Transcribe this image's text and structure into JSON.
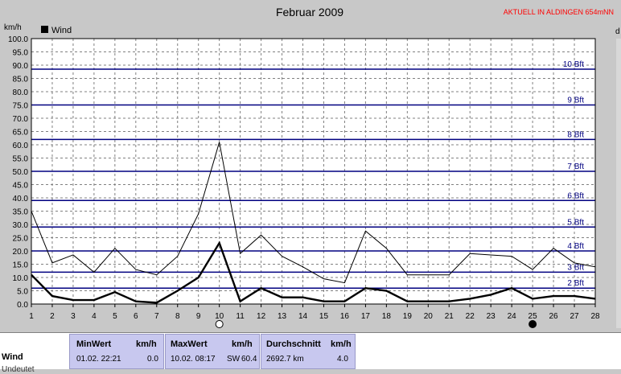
{
  "header": {
    "title": "Februar 2009",
    "station": "AKTUELL IN ALDINGEN 654mNN",
    "unit_left": "km/h",
    "unit_right": "d"
  },
  "legend": {
    "label": "Wind"
  },
  "colors": {
    "background": "#c8c8c8",
    "plot_background": "#ffffff",
    "beaufort_lines": "#000080",
    "grid": "#808080",
    "series": "#000000",
    "station_text": "#ff0000",
    "stats_panel": "#c8c8ef"
  },
  "chart_data": {
    "type": "line",
    "title": "Februar 2009",
    "ylabel": "km/h",
    "xlim": [
      1,
      28
    ],
    "ylim": [
      0,
      100
    ],
    "y_ticks": [
      "0.0",
      "5.0",
      "10.0",
      "15.0",
      "20.0",
      "25.0",
      "30.0",
      "35.0",
      "40.0",
      "45.0",
      "50.0",
      "55.0",
      "60.0",
      "65.0",
      "70.0",
      "75.0",
      "80.0",
      "85.0",
      "90.0",
      "95.0",
      "100.0"
    ],
    "x_ticks": [
      "1",
      "2",
      "3",
      "4",
      "5",
      "6",
      "7",
      "8",
      "9",
      "10",
      "11",
      "12",
      "13",
      "14",
      "15",
      "16",
      "17",
      "18",
      "19",
      "20",
      "21",
      "22",
      "23",
      "24",
      "25",
      "26",
      "27",
      "28"
    ],
    "grid": true,
    "legend_position": "top-left",
    "x": [
      1,
      2,
      3,
      4,
      5,
      6,
      7,
      8,
      9,
      10,
      11,
      12,
      13,
      14,
      15,
      16,
      17,
      18,
      19,
      20,
      21,
      22,
      23,
      24,
      25,
      26,
      27,
      28
    ],
    "series": [
      {
        "name": "Wind",
        "style": "gust-thin",
        "values": [
          35,
          15.5,
          18.5,
          12,
          21,
          13,
          11,
          18,
          34,
          61,
          19,
          26,
          18,
          14,
          9.5,
          8,
          27.5,
          21,
          11,
          11,
          11,
          19,
          18.5,
          18,
          13,
          21,
          15.5,
          14
        ]
      },
      {
        "name": "Wind",
        "style": "mean-bold",
        "values": [
          11,
          3,
          1.5,
          1.5,
          4.5,
          1,
          0.5,
          5,
          10,
          23,
          1,
          6,
          2.5,
          2.5,
          1,
          1,
          6,
          5,
          1,
          1,
          1,
          2,
          3.5,
          6,
          2,
          3,
          3,
          2
        ]
      }
    ],
    "reference_lines": [
      {
        "label": "10 Bft",
        "value": 88.5
      },
      {
        "label": "9 Bft",
        "value": 75
      },
      {
        "label": "8 Bft",
        "value": 62
      },
      {
        "label": "7 Bft",
        "value": 50
      },
      {
        "label": "6 Bft",
        "value": 39
      },
      {
        "label": "5 Bft",
        "value": 29
      },
      {
        "label": "4 Bft",
        "value": 20
      },
      {
        "label": "3 Bft",
        "value": 12
      },
      {
        "label": "2 Bft",
        "value": 6
      }
    ],
    "markers": [
      {
        "day": 10,
        "icon": "full-moon-icon"
      },
      {
        "day": 25,
        "icon": "new-moon-icon"
      }
    ]
  },
  "stats": {
    "row_label": "Wind",
    "row_label_2": "Undeutet",
    "min": {
      "title": "MinWert",
      "unit": "km/h",
      "date": "01.02.  22:21",
      "value": "0.0"
    },
    "max": {
      "title": "MaxWert",
      "unit": "km/h",
      "date": "10.02.  08:17",
      "direction": "SW",
      "value": "60.4"
    },
    "avg": {
      "title": "Durchschnitt",
      "unit": "km/h",
      "distance": "2692.7 km",
      "value": "4.0"
    }
  }
}
